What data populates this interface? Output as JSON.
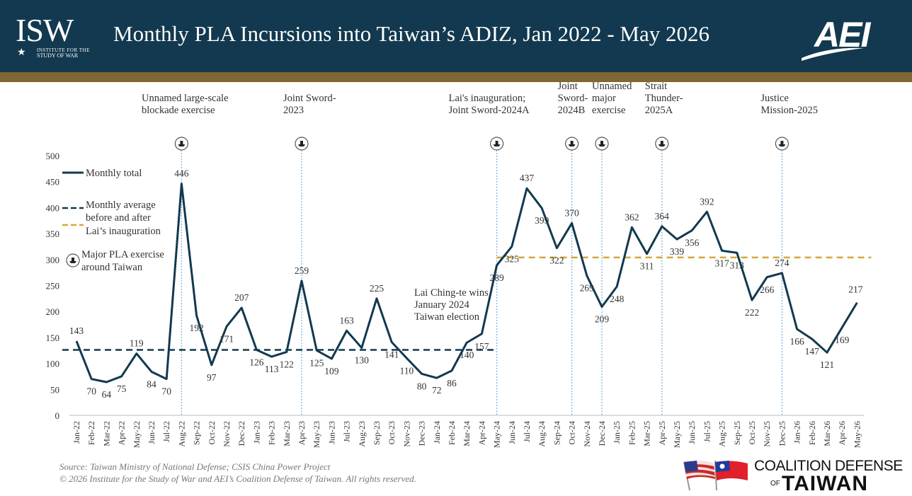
{
  "header": {
    "isw_logo": {
      "letters": "ISW",
      "line1": "INSTITUTE FOR THE",
      "line2": "STUDY OF WAR"
    },
    "title": "Monthly PLA Incursions into Taiwan’s ADIZ, Jan 2022 - May 2026",
    "aei_logo": "AEI",
    "colors": {
      "header_bg": "#12394f",
      "gold_bar": "#7f6633"
    }
  },
  "chart_data": {
    "type": "line",
    "title": "Monthly PLA Incursions into Taiwan’s ADIZ, Jan 2022 - May 2026",
    "categories": [
      "Jan-22",
      "Feb-22",
      "Mar-22",
      "Apr-22",
      "May-22",
      "Jun-22",
      "Jul-22",
      "Aug-22",
      "Sep-22",
      "Oct-22",
      "Nov-22",
      "Dec-22",
      "Jan-23",
      "Feb-23",
      "Mar-23",
      "Apr-23",
      "May-23",
      "Jun-23",
      "Jul-23",
      "Aug-23",
      "Sep-23",
      "Oct-23",
      "Nov-23",
      "Dec-23",
      "Jan-24",
      "Feb-24",
      "Mar-24",
      "Apr-24",
      "May-24",
      "Jun-24",
      "Jul-24",
      "Aug-24",
      "Sep-24",
      "Oct-24",
      "Nov-24",
      "Dec-24",
      "Jan-25",
      "Feb-25",
      "Mar-25",
      "Apr-25",
      "May-25",
      "Jun-25",
      "Jul-25",
      "Aug-25",
      "Sep-25",
      "Oct-25",
      "Nov-25",
      "Dec-25",
      "Jan-26",
      "Feb-26",
      "Mar-26",
      "Apr-26",
      "May-26"
    ],
    "series": [
      {
        "name": "Monthly total",
        "color": "#12394f",
        "values": [
          143,
          70,
          64,
          75,
          119,
          84,
          70,
          446,
          192,
          97,
          171,
          207,
          126,
          113,
          122,
          259,
          125,
          109,
          163,
          130,
          225,
          141,
          110,
          80,
          72,
          86,
          140,
          157,
          289,
          325,
          437,
          399,
          322,
          370,
          269,
          209,
          248,
          362,
          311,
          364,
          339,
          356,
          392,
          317,
          313,
          222,
          266,
          274,
          166,
          147,
          121,
          169,
          217
        ]
      }
    ],
    "point_labels": [
      "143",
      "70",
      "64",
      "75",
      "119",
      "84",
      "70",
      "446",
      "192",
      "97",
      "171",
      "207",
      "126",
      "113",
      "122",
      "259",
      "125",
      "109",
      "163",
      "130",
      "225",
      "141",
      "110",
      "80",
      "72",
      "86",
      "140",
      "157",
      "289",
      "325",
      "437",
      "399",
      "322",
      "370",
      "269",
      "209",
      "248",
      "362",
      "311",
      "364",
      "339",
      "356",
      "392",
      "317",
      "313",
      "222",
      "266",
      "274",
      "166",
      "147",
      "121",
      "169",
      "217"
    ],
    "averages": [
      {
        "label": "Monthly average before and after Lai’s inauguration",
        "value": 126,
        "from": "Jan-22",
        "to": "May-24",
        "color": "#12394f",
        "style": "dashed"
      },
      {
        "value": 304,
        "from": "May-24",
        "to": "May-26",
        "color": "#d4a83a",
        "style": "dashed"
      }
    ],
    "yaxis": {
      "min": 0,
      "max": 500,
      "ticks": [
        "0",
        "50",
        "100",
        "150",
        "200",
        "250",
        "300",
        "350",
        "400",
        "450",
        "500"
      ]
    },
    "legend": {
      "placement": "top-left",
      "items": [
        {
          "kind": "solid",
          "label": "Monthly total",
          "color": "#12394f"
        },
        {
          "kind": "dashed",
          "label_lines": [
            "Monthly average",
            "before and after"
          ],
          "color": "#12394f"
        },
        {
          "kind": "dashed",
          "label_lines": [
            "Lai’s inauguration"
          ],
          "color": "#d4a83a"
        },
        {
          "kind": "icon",
          "label_lines": [
            "Major PLA exercise",
            "around Taiwan"
          ]
        }
      ]
    },
    "exercises": [
      {
        "month": "Aug-22",
        "lines": [
          "Unnamed large-scale",
          "blockade exercise"
        ]
      },
      {
        "month": "Apr-23",
        "lines": [
          "Joint Sword-",
          "2023"
        ]
      },
      {
        "month": "May-24",
        "lines": [
          "Lai's inauguration;",
          "Joint Sword-2024A"
        ]
      },
      {
        "month": "Oct-24",
        "lines": [
          "Joint",
          "Sword-",
          "2024B"
        ]
      },
      {
        "month": "Dec-24",
        "lines": [
          "Unnamed",
          "major",
          "exercise"
        ]
      },
      {
        "month": "Apr-25",
        "lines": [
          "Strait",
          "Thunder-",
          "2025A"
        ]
      },
      {
        "month": "Dec-25",
        "lines": [
          "Justice",
          "Mission-2025"
        ]
      }
    ],
    "annotation": {
      "month": "Feb-24",
      "lines": [
        "Lai Ching-te wins",
        "January 2024",
        "Taiwan election"
      ]
    },
    "grid": false
  },
  "footer": {
    "source": "Source: Taiwan Ministry of National Defense; CSIS China Power Project",
    "copyright": "© 2026 Institute for the Study of War and AEI’s Coalition Defense of Taiwan. All rights reserved.",
    "cdt_logo": {
      "line1": "COALITION DEFENSE",
      "of": "OF",
      "line2": "TAIWAN"
    }
  }
}
